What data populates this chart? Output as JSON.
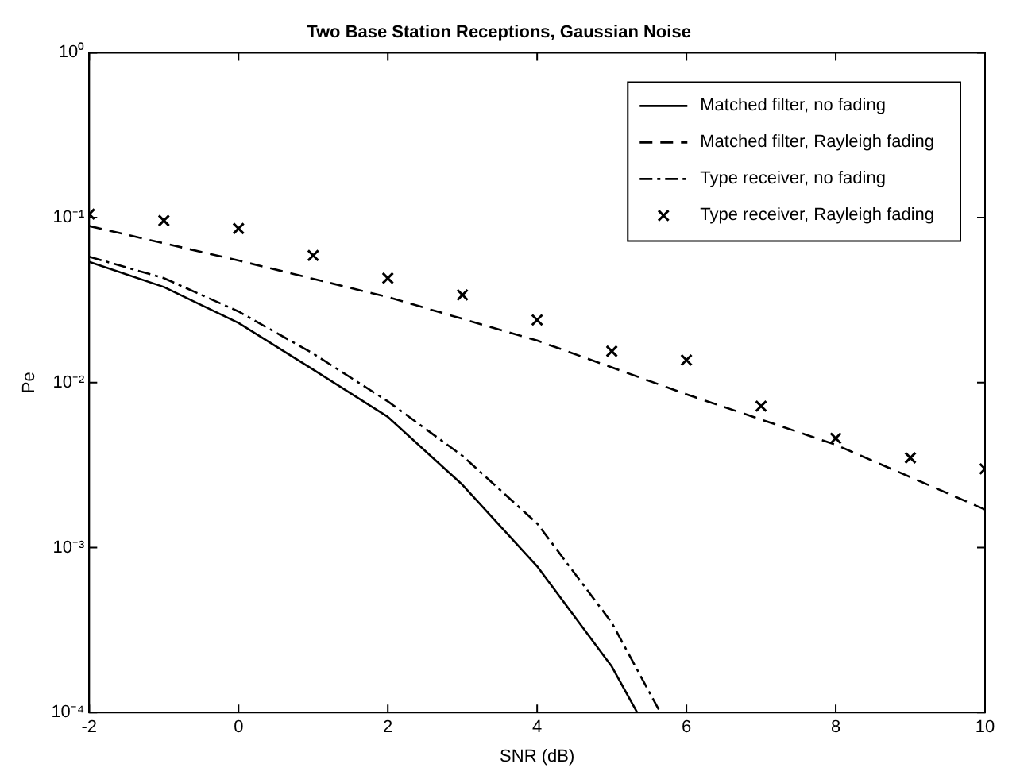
{
  "chart_data": {
    "type": "line",
    "title": "Two Base Station Receptions, Gaussian Noise",
    "xlabel": "SNR (dB)",
    "ylabel": "Pe",
    "log": "y",
    "xlim": [
      -2,
      10
    ],
    "xticks": [
      -2,
      0,
      2,
      4,
      6,
      8,
      10
    ],
    "ylim": [
      0.0001,
      1
    ],
    "yticks": [
      {
        "value": 0.0001,
        "label": "10⁻⁴"
      },
      {
        "value": 0.001,
        "label": "10⁻³"
      },
      {
        "value": 0.01,
        "label": "10⁻²"
      },
      {
        "value": 0.1,
        "label": "10⁻¹"
      },
      {
        "value": 1,
        "label": "10⁰"
      }
    ],
    "grid": false,
    "legend": "top right",
    "series": [
      {
        "name": "Matched filter, no fading",
        "color": "#000000",
        "line_style": "solid",
        "marker": "none",
        "x": [
          -2,
          -1,
          0,
          1,
          2,
          3,
          4,
          5,
          5.34
        ],
        "values": [
          0.054,
          0.038,
          0.023,
          0.012,
          0.0062,
          0.0024,
          0.00077,
          0.00019,
          0.0001
        ]
      },
      {
        "name": "Matched filter, Rayleigh fading",
        "color": "#000000",
        "line_style": "dashed",
        "marker": "none",
        "x": [
          -2,
          0,
          2,
          4,
          6,
          8,
          10
        ],
        "values": [
          0.089,
          0.055,
          0.033,
          0.018,
          0.0085,
          0.0042,
          0.0017
        ]
      },
      {
        "name": "Type receiver, no fading",
        "color": "#000000",
        "line_style": "dashdot",
        "marker": "none",
        "x": [
          -2,
          -1,
          0,
          1,
          2,
          3,
          4,
          5,
          5.65
        ],
        "values": [
          0.058,
          0.043,
          0.027,
          0.015,
          0.0077,
          0.0036,
          0.0014,
          0.00035,
          0.0001
        ]
      },
      {
        "name": "Type receiver, Rayleigh fading",
        "type": "scatter",
        "color": "#000000",
        "marker": "cross",
        "x": [
          -2,
          -1,
          0,
          1,
          2,
          3,
          4,
          5,
          6,
          7,
          8,
          9,
          10
        ],
        "values": [
          0.105,
          0.096,
          0.086,
          0.059,
          0.043,
          0.034,
          0.024,
          0.0155,
          0.0137,
          0.0072,
          0.0046,
          0.0035,
          0.003
        ]
      }
    ]
  }
}
